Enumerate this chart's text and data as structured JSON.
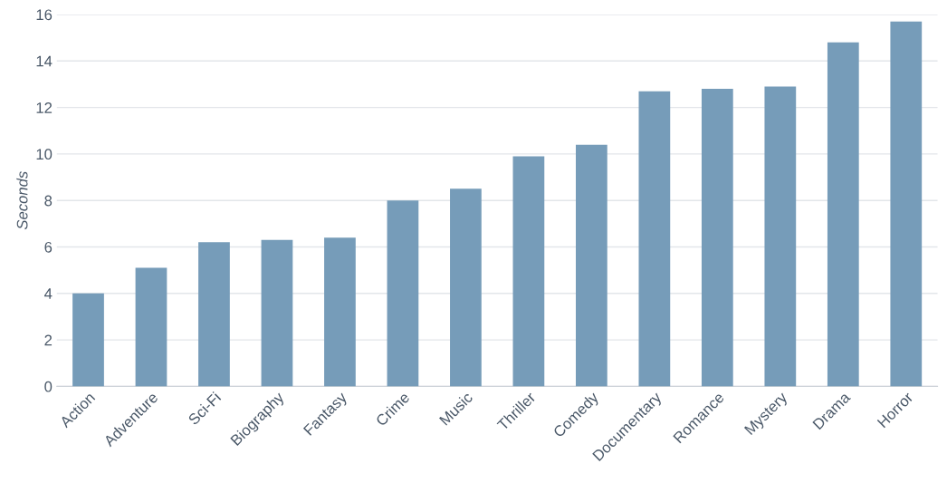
{
  "chart_data": {
    "type": "bar",
    "ylabel": "Seconds",
    "categories": [
      "Action",
      "Adventure",
      "Sci-Fi",
      "Biography",
      "Fantasy",
      "Crime",
      "Music",
      "Thriller",
      "Comedy",
      "Documentary",
      "Romance",
      "Mystery",
      "Drama",
      "Horror"
    ],
    "values": [
      4.0,
      5.1,
      6.2,
      6.3,
      6.4,
      8.0,
      8.5,
      9.9,
      10.4,
      12.7,
      12.8,
      12.9,
      14.8,
      15.7
    ],
    "color": "#769cb9",
    "ylim": [
      0,
      16
    ],
    "yticks": [
      0,
      2,
      4,
      6,
      8,
      10,
      12,
      14,
      16
    ],
    "grid": "y"
  }
}
